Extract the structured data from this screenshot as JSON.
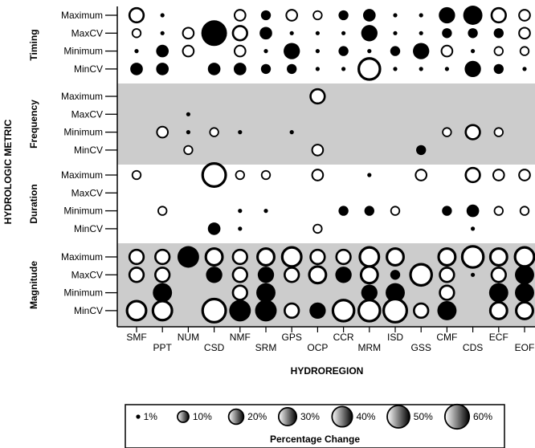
{
  "chart_data": {
    "type": "scatter",
    "xlabel": "HYDROREGION",
    "ylabel": "HYDROLOGIC METRIC",
    "x_categories": [
      "SMF",
      "PPT",
      "NUM",
      "CSD",
      "NMF",
      "SRM",
      "GPS",
      "OCP",
      "CCR",
      "MRM",
      "ISD",
      "GSS",
      "CMF",
      "CDS",
      "ECF",
      "EOF"
    ],
    "groups": [
      {
        "name": "Timing",
        "shaded": false,
        "rows": [
          "Maximum",
          "MaxCV",
          "Minimum",
          "MinCV"
        ]
      },
      {
        "name": "Frequency",
        "shaded": true,
        "rows": [
          "Maximum",
          "MaxCV",
          "Minimum",
          "MinCV"
        ]
      },
      {
        "name": "Duration",
        "shaded": false,
        "rows": [
          "Maximum",
          "MaxCV",
          "Minimum",
          "MinCV"
        ]
      },
      {
        "name": "Magnitude",
        "shaded": true,
        "rows": [
          "Maximum",
          "MaxCV",
          "Minimum",
          "MinCV"
        ]
      }
    ],
    "points": [
      [
        0,
        0,
        0,
        20,
        "o"
      ],
      [
        0,
        0,
        1,
        1,
        "f"
      ],
      [
        0,
        0,
        4,
        10,
        "o"
      ],
      [
        0,
        0,
        5,
        5,
        "f"
      ],
      [
        0,
        0,
        6,
        10,
        "o"
      ],
      [
        0,
        0,
        7,
        5,
        "o"
      ],
      [
        0,
        0,
        8,
        5,
        "f"
      ],
      [
        0,
        0,
        9,
        10,
        "f"
      ],
      [
        0,
        0,
        10,
        1,
        "f"
      ],
      [
        0,
        0,
        11,
        1,
        "f"
      ],
      [
        0,
        0,
        12,
        20,
        "f"
      ],
      [
        0,
        0,
        13,
        30,
        "f"
      ],
      [
        0,
        0,
        14,
        20,
        "o"
      ],
      [
        0,
        0,
        15,
        10,
        "o"
      ],
      [
        0,
        1,
        0,
        5,
        "o"
      ],
      [
        0,
        1,
        1,
        1,
        "f"
      ],
      [
        0,
        1,
        2,
        10,
        "o"
      ],
      [
        0,
        1,
        3,
        60,
        "f"
      ],
      [
        0,
        1,
        4,
        20,
        "o"
      ],
      [
        0,
        1,
        5,
        10,
        "f"
      ],
      [
        0,
        1,
        6,
        1,
        "f"
      ],
      [
        0,
        1,
        7,
        1,
        "f"
      ],
      [
        0,
        1,
        8,
        1,
        "f"
      ],
      [
        0,
        1,
        9,
        20,
        "f"
      ],
      [
        0,
        1,
        10,
        1,
        "f"
      ],
      [
        0,
        1,
        11,
        1,
        "f"
      ],
      [
        0,
        1,
        12,
        5,
        "f"
      ],
      [
        0,
        1,
        13,
        5,
        "f"
      ],
      [
        0,
        1,
        14,
        5,
        "f"
      ],
      [
        0,
        1,
        15,
        10,
        "o"
      ],
      [
        0,
        2,
        0,
        1,
        "f"
      ],
      [
        0,
        2,
        1,
        10,
        "f"
      ],
      [
        0,
        2,
        2,
        10,
        "o"
      ],
      [
        0,
        2,
        4,
        10,
        "o"
      ],
      [
        0,
        2,
        5,
        1,
        "f"
      ],
      [
        0,
        2,
        6,
        20,
        "f"
      ],
      [
        0,
        2,
        7,
        1,
        "f"
      ],
      [
        0,
        2,
        8,
        5,
        "f"
      ],
      [
        0,
        2,
        9,
        1,
        "f"
      ],
      [
        0,
        2,
        10,
        5,
        "f"
      ],
      [
        0,
        2,
        11,
        20,
        "f"
      ],
      [
        0,
        2,
        12,
        10,
        "o"
      ],
      [
        0,
        2,
        13,
        1,
        "f"
      ],
      [
        0,
        2,
        14,
        5,
        "o"
      ],
      [
        0,
        2,
        15,
        5,
        "o"
      ],
      [
        0,
        3,
        0,
        10,
        "f"
      ],
      [
        0,
        3,
        1,
        10,
        "f"
      ],
      [
        0,
        3,
        3,
        10,
        "f"
      ],
      [
        0,
        3,
        4,
        10,
        "f"
      ],
      [
        0,
        3,
        5,
        5,
        "f"
      ],
      [
        0,
        3,
        6,
        5,
        "f"
      ],
      [
        0,
        3,
        7,
        1,
        "f"
      ],
      [
        0,
        3,
        8,
        1,
        "f"
      ],
      [
        0,
        3,
        9,
        50,
        "o"
      ],
      [
        0,
        3,
        10,
        1,
        "f"
      ],
      [
        0,
        3,
        11,
        1,
        "f"
      ],
      [
        0,
        3,
        12,
        1,
        "f"
      ],
      [
        0,
        3,
        13,
        20,
        "f"
      ],
      [
        0,
        3,
        14,
        5,
        "f"
      ],
      [
        0,
        3,
        15,
        1,
        "f"
      ],
      [
        1,
        0,
        7,
        20,
        "o"
      ],
      [
        1,
        1,
        2,
        1,
        "f"
      ],
      [
        1,
        2,
        1,
        10,
        "o"
      ],
      [
        1,
        2,
        2,
        1,
        "f"
      ],
      [
        1,
        2,
        3,
        5,
        "o"
      ],
      [
        1,
        2,
        4,
        1,
        "f"
      ],
      [
        1,
        2,
        6,
        1,
        "f"
      ],
      [
        1,
        2,
        12,
        5,
        "o"
      ],
      [
        1,
        2,
        13,
        20,
        "o"
      ],
      [
        1,
        2,
        14,
        5,
        "o"
      ],
      [
        1,
        3,
        2,
        5,
        "o"
      ],
      [
        1,
        3,
        7,
        10,
        "o"
      ],
      [
        1,
        3,
        11,
        5,
        "f"
      ],
      [
        2,
        0,
        0,
        5,
        "o"
      ],
      [
        2,
        0,
        3,
        60,
        "o"
      ],
      [
        2,
        0,
        4,
        5,
        "o"
      ],
      [
        2,
        0,
        5,
        5,
        "o"
      ],
      [
        2,
        0,
        7,
        10,
        "o"
      ],
      [
        2,
        0,
        9,
        1,
        "f"
      ],
      [
        2,
        0,
        11,
        10,
        "o"
      ],
      [
        2,
        0,
        13,
        20,
        "o"
      ],
      [
        2,
        0,
        14,
        10,
        "o"
      ],
      [
        2,
        0,
        15,
        10,
        "o"
      ],
      [
        2,
        2,
        1,
        5,
        "o"
      ],
      [
        2,
        2,
        4,
        1,
        "f"
      ],
      [
        2,
        2,
        5,
        1,
        "f"
      ],
      [
        2,
        2,
        8,
        5,
        "f"
      ],
      [
        2,
        2,
        9,
        5,
        "f"
      ],
      [
        2,
        2,
        10,
        5,
        "o"
      ],
      [
        2,
        2,
        12,
        5,
        "f"
      ],
      [
        2,
        2,
        13,
        10,
        "f"
      ],
      [
        2,
        2,
        14,
        5,
        "o"
      ],
      [
        2,
        2,
        15,
        5,
        "o"
      ],
      [
        2,
        3,
        3,
        10,
        "f"
      ],
      [
        2,
        3,
        4,
        1,
        "f"
      ],
      [
        2,
        3,
        7,
        5,
        "o"
      ],
      [
        2,
        3,
        13,
        1,
        "f"
      ],
      [
        3,
        0,
        0,
        20,
        "o"
      ],
      [
        3,
        0,
        1,
        20,
        "o"
      ],
      [
        3,
        0,
        2,
        40,
        "f"
      ],
      [
        3,
        0,
        3,
        30,
        "o"
      ],
      [
        3,
        0,
        4,
        20,
        "o"
      ],
      [
        3,
        0,
        5,
        30,
        "o"
      ],
      [
        3,
        0,
        6,
        40,
        "o"
      ],
      [
        3,
        0,
        7,
        20,
        "o"
      ],
      [
        3,
        0,
        8,
        20,
        "o"
      ],
      [
        3,
        0,
        9,
        40,
        "o"
      ],
      [
        3,
        0,
        10,
        30,
        "o"
      ],
      [
        3,
        0,
        12,
        30,
        "o"
      ],
      [
        3,
        0,
        13,
        50,
        "o"
      ],
      [
        3,
        0,
        14,
        30,
        "o"
      ],
      [
        3,
        0,
        15,
        40,
        "o"
      ],
      [
        3,
        1,
        0,
        20,
        "o"
      ],
      [
        3,
        1,
        1,
        20,
        "o"
      ],
      [
        3,
        1,
        3,
        20,
        "f"
      ],
      [
        3,
        1,
        4,
        20,
        "o"
      ],
      [
        3,
        1,
        5,
        20,
        "f"
      ],
      [
        3,
        1,
        6,
        20,
        "o"
      ],
      [
        3,
        1,
        7,
        30,
        "o"
      ],
      [
        3,
        1,
        8,
        20,
        "f"
      ],
      [
        3,
        1,
        9,
        30,
        "o"
      ],
      [
        3,
        1,
        10,
        5,
        "f"
      ],
      [
        3,
        1,
        11,
        50,
        "o"
      ],
      [
        3,
        1,
        12,
        20,
        "o"
      ],
      [
        3,
        1,
        13,
        1,
        "f"
      ],
      [
        3,
        1,
        14,
        20,
        "o"
      ],
      [
        3,
        1,
        15,
        30,
        "f"
      ],
      [
        3,
        2,
        1,
        30,
        "f"
      ],
      [
        3,
        2,
        4,
        20,
        "o"
      ],
      [
        3,
        2,
        5,
        30,
        "f"
      ],
      [
        3,
        2,
        9,
        20,
        "f"
      ],
      [
        3,
        2,
        10,
        30,
        "f"
      ],
      [
        3,
        2,
        12,
        20,
        "o"
      ],
      [
        3,
        2,
        14,
        30,
        "f"
      ],
      [
        3,
        2,
        15,
        30,
        "f"
      ],
      [
        3,
        3,
        0,
        40,
        "o"
      ],
      [
        3,
        3,
        1,
        40,
        "o"
      ],
      [
        3,
        3,
        3,
        60,
        "o"
      ],
      [
        3,
        3,
        4,
        40,
        "f"
      ],
      [
        3,
        3,
        5,
        40,
        "f"
      ],
      [
        3,
        3,
        6,
        20,
        "o"
      ],
      [
        3,
        3,
        7,
        20,
        "f"
      ],
      [
        3,
        3,
        8,
        50,
        "o"
      ],
      [
        3,
        3,
        9,
        50,
        "o"
      ],
      [
        3,
        3,
        10,
        60,
        "o"
      ],
      [
        3,
        3,
        11,
        20,
        "o"
      ],
      [
        3,
        3,
        12,
        30,
        "f"
      ],
      [
        3,
        3,
        14,
        30,
        "o"
      ],
      [
        3,
        3,
        15,
        30,
        "o"
      ]
    ],
    "legend": {
      "title": "Percentage Change",
      "position": "bottom",
      "items": [
        {
          "label": "1%",
          "value": 1
        },
        {
          "label": "10%",
          "value": 10
        },
        {
          "label": "20%",
          "value": 20
        },
        {
          "label": "30%",
          "value": 30
        },
        {
          "label": "40%",
          "value": 40
        },
        {
          "label": "50%",
          "value": 50
        },
        {
          "label": "60%",
          "value": 60
        }
      ]
    },
    "grid": false
  }
}
